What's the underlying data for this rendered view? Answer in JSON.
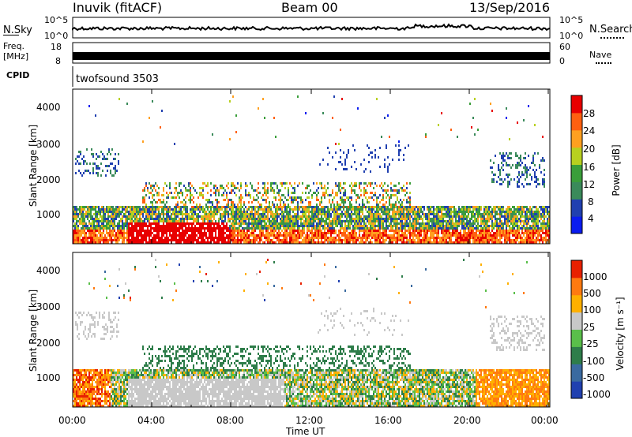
{
  "header": {
    "station": "Inuvik (fitACF)",
    "beam": "Beam 00",
    "date": "13/Sep/2016"
  },
  "noise_panel": {
    "left_label": "N.Sky",
    "left_ticks": [
      "10^5",
      "10^0"
    ],
    "right_label": "N.Search",
    "right_ticks": [
      "10^5",
      "10^0"
    ]
  },
  "freq_panel": {
    "left_label_1": "Freq.",
    "left_label_2": "[MHz]",
    "left_ticks": [
      "18",
      "8"
    ],
    "right_label": "Nave",
    "right_ticks": [
      "60",
      "0"
    ]
  },
  "cpid_panel": {
    "label": "CPID",
    "mode": "twofsound 3503"
  },
  "power_panel": {
    "ylabel": "Slant Range [km]",
    "yticks": [
      "4000",
      "3000",
      "2000",
      "1000"
    ],
    "colorbar_label": "Power [dB]",
    "colorbar_ticks": [
      "28",
      "24",
      "20",
      "16",
      "12",
      "8",
      "4"
    ],
    "colors": [
      "#0a1cf0",
      "#2040b0",
      "#3a8a5a",
      "#3a9e3a",
      "#b8d020",
      "#ffa020",
      "#ff6010",
      "#e80000"
    ]
  },
  "velocity_panel": {
    "ylabel": "Slant Range [km]",
    "yticks": [
      "4000",
      "3000",
      "2000",
      "1000"
    ],
    "colorbar_label": "Velocity  [m s⁻¹]",
    "colorbar_ticks": [
      "1000",
      "500",
      "100",
      "25",
      "-25",
      "-100",
      "-500",
      "-1000"
    ],
    "colors": [
      "#2040b0",
      "#3a6aa0",
      "#2e7d4a",
      "#5abf4a",
      "#c8c8c8",
      "#ffb000",
      "#ff7a10",
      "#e82000"
    ]
  },
  "xaxis": {
    "label": "Time UT",
    "ticks": [
      "00:00",
      "04:00",
      "08:00",
      "12:00",
      "16:00",
      "20:00",
      "00:00"
    ]
  },
  "chart_data": [
    {
      "type": "line",
      "title": "",
      "ylabel": "N.Sky",
      "y_scale": "log",
      "ylim": [
        1,
        100000
      ],
      "x": [
        "00:00",
        "04:00",
        "08:00",
        "12:00",
        "16:00",
        "20:00",
        "00:00"
      ],
      "series": [
        {
          "values": [
            5000,
            6000,
            6000,
            7000,
            8000,
            12000,
            6000
          ]
        }
      ]
    },
    {
      "type": "line",
      "title": "",
      "ylabel": "Freq. [MHz]",
      "ylim": [
        8,
        18
      ],
      "x": [
        "00:00",
        "04:00",
        "08:00",
        "12:00",
        "16:00",
        "20:00",
        "00:00"
      ],
      "series": [
        {
          "values": [
            10,
            10,
            10,
            10,
            10,
            10,
            10
          ]
        }
      ]
    },
    {
      "type": "heatmap",
      "title": "",
      "ylabel": "Slant Range [km]",
      "ylim": [
        180,
        4500
      ],
      "xlabel": "Time UT",
      "colorbar": "Power [dB]",
      "clim": [
        0,
        30
      ]
    },
    {
      "type": "heatmap",
      "title": "",
      "ylabel": "Slant Range [km]",
      "ylim": [
        180,
        4500
      ],
      "xlabel": "Time UT",
      "colorbar": "Velocity [m s⁻¹]",
      "clim": [
        -1000,
        1000
      ]
    }
  ]
}
